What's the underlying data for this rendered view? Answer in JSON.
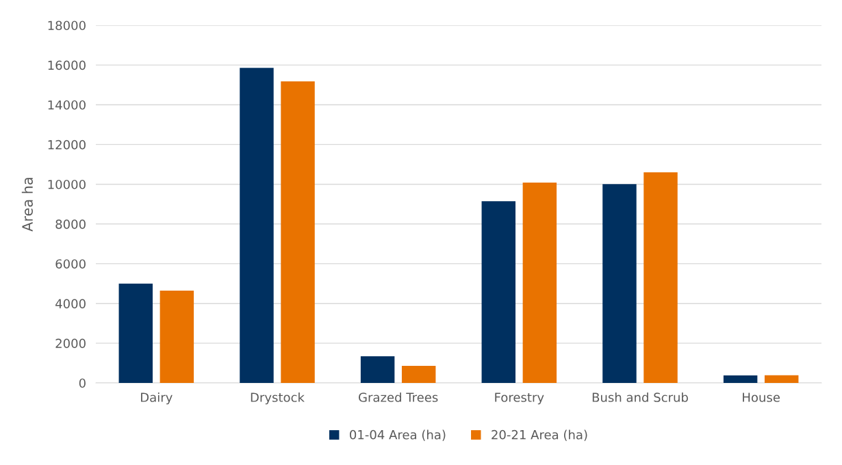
{
  "chart_data": {
    "type": "bar",
    "ylabel": "Area ha",
    "categories": [
      "Dairy",
      "Drystock",
      "Grazed Trees",
      "Forestry",
      "Bush and Scrub",
      "House"
    ],
    "series": [
      {
        "name": "01-04 Area (ha)",
        "color": "#003060",
        "values": [
          5000,
          15860,
          1340,
          9150,
          10010,
          380
        ]
      },
      {
        "name": "20-21 Area (ha)",
        "color": "#e97300",
        "values": [
          4650,
          15175,
          860,
          10080,
          10600,
          390
        ]
      }
    ],
    "ylim": [
      0,
      18000
    ],
    "yticks": [
      0,
      2000,
      4000,
      6000,
      8000,
      10000,
      12000,
      14000,
      16000,
      18000
    ],
    "grid": "y",
    "legend": "bottom"
  }
}
